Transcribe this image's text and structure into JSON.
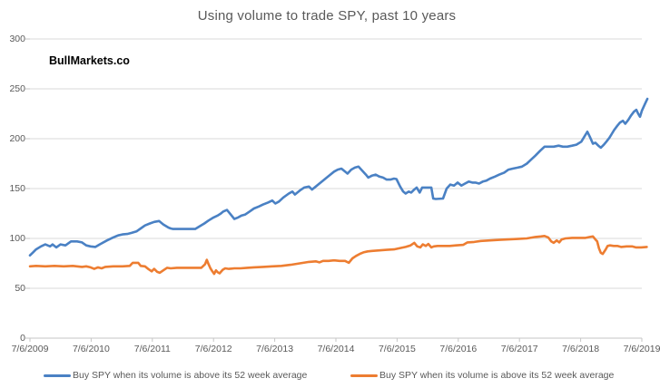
{
  "title": "Using volume to trade SPY, past 10 years",
  "watermark": "BullMarkets.co",
  "legend": {
    "position": "bottom",
    "items": [
      {
        "label": "Buy SPY when its volume is above its 52 week average",
        "color": "#4A81C4"
      },
      {
        "label": "Buy SPY when its volume is above its 52 week average",
        "color": "#ED7D31"
      }
    ]
  },
  "colors": {
    "blue_series": "#4A81C4",
    "orange_series": "#ED7D31",
    "gridline": "#D9D9D9",
    "axis": "#C6C6C6",
    "label_text": "#595959",
    "title_text": "#595959"
  },
  "chart_data": {
    "type": "line",
    "title": "Using volume to trade SPY, past 10 years",
    "xlabel": "",
    "ylabel": "",
    "grid": "horizontal",
    "legend_position": "bottom",
    "x_axis": {
      "unit": "years since 7/6/2009",
      "range": [
        0,
        10
      ],
      "tick_labels": [
        "7/6/2009",
        "7/6/2010",
        "7/6/2011",
        "7/6/2012",
        "7/6/2013",
        "7/6/2014",
        "7/6/2015",
        "7/6/2016",
        "7/6/2017",
        "7/6/2018",
        "7/6/2019"
      ]
    },
    "y_axis": {
      "range": [
        0,
        300
      ],
      "ticks": [
        0,
        50,
        100,
        150,
        200,
        250,
        300
      ]
    },
    "series": [
      {
        "name": "Buy SPY when its volume is above its 52 week average (blue)",
        "color": "#4A81C4",
        "points": [
          [
            0,
            83
          ],
          [
            0.05,
            86
          ],
          [
            0.1,
            89
          ],
          [
            0.18,
            92
          ],
          [
            0.25,
            94
          ],
          [
            0.33,
            92
          ],
          [
            0.37,
            94
          ],
          [
            0.43,
            91
          ],
          [
            0.5,
            94
          ],
          [
            0.58,
            93
          ],
          [
            0.67,
            97
          ],
          [
            0.77,
            97
          ],
          [
            0.85,
            96
          ],
          [
            0.92,
            93
          ],
          [
            0.99,
            92
          ],
          [
            1.07,
            91.5
          ],
          [
            1.14,
            94
          ],
          [
            1.26,
            98
          ],
          [
            1.36,
            101
          ],
          [
            1.44,
            103
          ],
          [
            1.51,
            104
          ],
          [
            1.59,
            104.5
          ],
          [
            1.66,
            105.5
          ],
          [
            1.74,
            107
          ],
          [
            1.81,
            110
          ],
          [
            1.88,
            113
          ],
          [
            1.96,
            115
          ],
          [
            2.03,
            116.5
          ],
          [
            2.11,
            117.5
          ],
          [
            2.18,
            114
          ],
          [
            2.26,
            111
          ],
          [
            2.3,
            110
          ],
          [
            2.34,
            109.5
          ],
          [
            2.7,
            109.5
          ],
          [
            2.77,
            112
          ],
          [
            2.85,
            115
          ],
          [
            2.92,
            118
          ],
          [
            3,
            121
          ],
          [
            3.07,
            123
          ],
          [
            3.12,
            125
          ],
          [
            3.16,
            127
          ],
          [
            3.22,
            128.5
          ],
          [
            3.28,
            124
          ],
          [
            3.34,
            119.5
          ],
          [
            3.4,
            121
          ],
          [
            3.46,
            123
          ],
          [
            3.52,
            124
          ],
          [
            3.59,
            127
          ],
          [
            3.66,
            130
          ],
          [
            3.74,
            132
          ],
          [
            3.81,
            134
          ],
          [
            3.89,
            136
          ],
          [
            3.96,
            138
          ],
          [
            4.01,
            135
          ],
          [
            4.07,
            137
          ],
          [
            4.14,
            141
          ],
          [
            4.23,
            145
          ],
          [
            4.29,
            147
          ],
          [
            4.33,
            144
          ],
          [
            4.41,
            148
          ],
          [
            4.48,
            151
          ],
          [
            4.56,
            152
          ],
          [
            4.61,
            149
          ],
          [
            4.67,
            152
          ],
          [
            4.73,
            155
          ],
          [
            4.79,
            158
          ],
          [
            4.85,
            161
          ],
          [
            4.91,
            164
          ],
          [
            4.97,
            167
          ],
          [
            5.03,
            169
          ],
          [
            5.09,
            170
          ],
          [
            5.15,
            167
          ],
          [
            5.19,
            165
          ],
          [
            5.25,
            169
          ],
          [
            5.31,
            171
          ],
          [
            5.37,
            172
          ],
          [
            5.43,
            168
          ],
          [
            5.49,
            164
          ],
          [
            5.53,
            161
          ],
          [
            5.59,
            163
          ],
          [
            5.65,
            164
          ],
          [
            5.71,
            162
          ],
          [
            5.77,
            161
          ],
          [
            5.83,
            159
          ],
          [
            5.89,
            159
          ],
          [
            5.95,
            160
          ],
          [
            5.99,
            159.5
          ],
          [
            6.05,
            152
          ],
          [
            6.1,
            147
          ],
          [
            6.14,
            145
          ],
          [
            6.19,
            147
          ],
          [
            6.23,
            146
          ],
          [
            6.28,
            149
          ],
          [
            6.32,
            151
          ],
          [
            6.37,
            146
          ],
          [
            6.41,
            151
          ],
          [
            6.56,
            151
          ],
          [
            6.59,
            140
          ],
          [
            6.63,
            139.5
          ],
          [
            6.75,
            140
          ],
          [
            6.81,
            150
          ],
          [
            6.87,
            154
          ],
          [
            6.93,
            153
          ],
          [
            6.99,
            156
          ],
          [
            7.05,
            153
          ],
          [
            7.11,
            155
          ],
          [
            7.17,
            157
          ],
          [
            7.23,
            156
          ],
          [
            7.28,
            156
          ],
          [
            7.34,
            155
          ],
          [
            7.4,
            157
          ],
          [
            7.46,
            158
          ],
          [
            7.52,
            160
          ],
          [
            7.6,
            162
          ],
          [
            7.67,
            164
          ],
          [
            7.75,
            166
          ],
          [
            7.82,
            169
          ],
          [
            7.89,
            170
          ],
          [
            7.97,
            171
          ],
          [
            8.04,
            172
          ],
          [
            8.12,
            175
          ],
          [
            8.19,
            179
          ],
          [
            8.26,
            183
          ],
          [
            8.34,
            188
          ],
          [
            8.41,
            192
          ],
          [
            8.56,
            192
          ],
          [
            8.64,
            193
          ],
          [
            8.71,
            192
          ],
          [
            8.78,
            192
          ],
          [
            8.86,
            193
          ],
          [
            8.93,
            194
          ],
          [
            9.01,
            197
          ],
          [
            9.07,
            203
          ],
          [
            9.11,
            207
          ],
          [
            9.15,
            202
          ],
          [
            9.2,
            195
          ],
          [
            9.24,
            196
          ],
          [
            9.29,
            193
          ],
          [
            9.33,
            191
          ],
          [
            9.38,
            194
          ],
          [
            9.42,
            197
          ],
          [
            9.47,
            201
          ],
          [
            9.51,
            205
          ],
          [
            9.55,
            209
          ],
          [
            9.6,
            213
          ],
          [
            9.64,
            216
          ],
          [
            9.69,
            218
          ],
          [
            9.73,
            215
          ],
          [
            9.78,
            219
          ],
          [
            9.82,
            223
          ],
          [
            9.87,
            227
          ],
          [
            9.91,
            229
          ],
          [
            9.94,
            225
          ],
          [
            9.97,
            222
          ],
          [
            10,
            228
          ],
          [
            10.03,
            232
          ],
          [
            10.06,
            236
          ],
          [
            10.09,
            240
          ]
        ]
      },
      {
        "name": "Buy SPY when its volume is above its 52 week average (orange)",
        "color": "#ED7D31",
        "points": [
          [
            0,
            72
          ],
          [
            0.1,
            72.5
          ],
          [
            0.25,
            72
          ],
          [
            0.4,
            72.5
          ],
          [
            0.55,
            72
          ],
          [
            0.7,
            72.5
          ],
          [
            0.85,
            71.5
          ],
          [
            0.92,
            72
          ],
          [
            0.99,
            71
          ],
          [
            1.05,
            69.5
          ],
          [
            1.11,
            71
          ],
          [
            1.17,
            70
          ],
          [
            1.23,
            71.5
          ],
          [
            1.36,
            72
          ],
          [
            1.51,
            72
          ],
          [
            1.63,
            72.5
          ],
          [
            1.68,
            75.5
          ],
          [
            1.77,
            75.5
          ],
          [
            1.81,
            72.5
          ],
          [
            1.88,
            72
          ],
          [
            1.94,
            69
          ],
          [
            1.99,
            67
          ],
          [
            2.03,
            69.5
          ],
          [
            2.08,
            66.5
          ],
          [
            2.12,
            65.5
          ],
          [
            2.18,
            68
          ],
          [
            2.24,
            70.5
          ],
          [
            2.3,
            70
          ],
          [
            2.4,
            70.5
          ],
          [
            2.55,
            70.5
          ],
          [
            2.7,
            70.5
          ],
          [
            2.8,
            70.5
          ],
          [
            2.86,
            74
          ],
          [
            2.89,
            78.5
          ],
          [
            2.92,
            74
          ],
          [
            2.95,
            70
          ],
          [
            2.98,
            67
          ],
          [
            3.01,
            64.5
          ],
          [
            3.04,
            68
          ],
          [
            3.07,
            66
          ],
          [
            3.1,
            65
          ],
          [
            3.15,
            68.5
          ],
          [
            3.19,
            70
          ],
          [
            3.25,
            69.5
          ],
          [
            3.34,
            70
          ],
          [
            3.44,
            70
          ],
          [
            3.55,
            70.5
          ],
          [
            3.66,
            71
          ],
          [
            3.81,
            71.5
          ],
          [
            3.96,
            72
          ],
          [
            4.11,
            72.5
          ],
          [
            4.26,
            73.5
          ],
          [
            4.41,
            75
          ],
          [
            4.56,
            76.5
          ],
          [
            4.67,
            77
          ],
          [
            4.73,
            76
          ],
          [
            4.79,
            77.5
          ],
          [
            4.88,
            77.5
          ],
          [
            4.97,
            78
          ],
          [
            5.06,
            77.5
          ],
          [
            5.15,
            77.5
          ],
          [
            5.21,
            75.5
          ],
          [
            5.27,
            80
          ],
          [
            5.33,
            82.5
          ],
          [
            5.39,
            84.5
          ],
          [
            5.45,
            86
          ],
          [
            5.52,
            87
          ],
          [
            5.59,
            87.5
          ],
          [
            5.71,
            88
          ],
          [
            5.83,
            88.5
          ],
          [
            5.95,
            89
          ],
          [
            6.07,
            90.5
          ],
          [
            6.14,
            91.5
          ],
          [
            6.22,
            93
          ],
          [
            6.28,
            95.5
          ],
          [
            6.33,
            92
          ],
          [
            6.38,
            91
          ],
          [
            6.42,
            94
          ],
          [
            6.47,
            92.5
          ],
          [
            6.51,
            94.5
          ],
          [
            6.56,
            91
          ],
          [
            6.6,
            92
          ],
          [
            6.66,
            92.5
          ],
          [
            6.75,
            92.5
          ],
          [
            6.86,
            92.5
          ],
          [
            6.96,
            93
          ],
          [
            7.08,
            93.5
          ],
          [
            7.15,
            96
          ],
          [
            7.26,
            96.5
          ],
          [
            7.37,
            97.5
          ],
          [
            7.52,
            98
          ],
          [
            7.67,
            98.5
          ],
          [
            7.82,
            99
          ],
          [
            7.97,
            99.5
          ],
          [
            8.12,
            100
          ],
          [
            8.26,
            101.5
          ],
          [
            8.35,
            102
          ],
          [
            8.41,
            102.5
          ],
          [
            8.47,
            101
          ],
          [
            8.52,
            97
          ],
          [
            8.56,
            95.5
          ],
          [
            8.61,
            98
          ],
          [
            8.65,
            96
          ],
          [
            8.69,
            99
          ],
          [
            8.75,
            100
          ],
          [
            8.86,
            100.5
          ],
          [
            8.98,
            100.5
          ],
          [
            9.08,
            100.5
          ],
          [
            9.15,
            101.5
          ],
          [
            9.2,
            102
          ],
          [
            9.24,
            99
          ],
          [
            9.27,
            97
          ],
          [
            9.3,
            90
          ],
          [
            9.33,
            85.5
          ],
          [
            9.36,
            84.5
          ],
          [
            9.41,
            89
          ],
          [
            9.44,
            92.5
          ],
          [
            9.48,
            93
          ],
          [
            9.54,
            92.5
          ],
          [
            9.6,
            92.5
          ],
          [
            9.66,
            91.5
          ],
          [
            9.75,
            92
          ],
          [
            9.84,
            92
          ],
          [
            9.9,
            91
          ],
          [
            9.99,
            91
          ],
          [
            10.08,
            91.5
          ]
        ]
      }
    ]
  }
}
